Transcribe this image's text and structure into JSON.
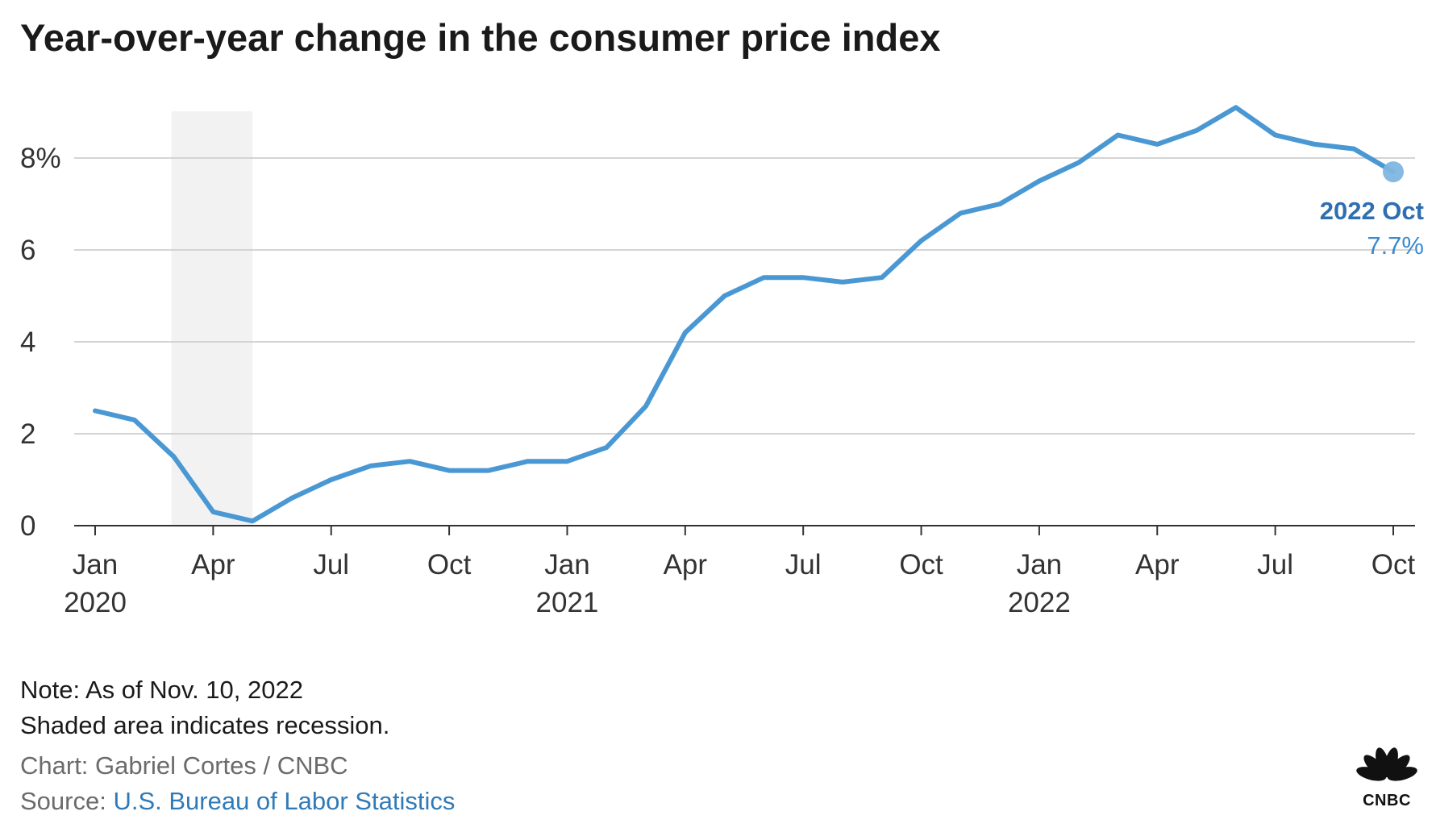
{
  "chart_data": {
    "type": "line",
    "title": "Year-over-year change in the consumer price index",
    "xlabel": "",
    "ylabel": "",
    "ylim": [
      0,
      9
    ],
    "yticks": [
      {
        "value": 0,
        "label": "0"
      },
      {
        "value": 2,
        "label": "2"
      },
      {
        "value": 4,
        "label": "4"
      },
      {
        "value": 6,
        "label": "6"
      },
      {
        "value": 8,
        "label": "8%"
      }
    ],
    "xticks": [
      {
        "index": 0,
        "label": "Jan",
        "sublabel": "2020"
      },
      {
        "index": 3,
        "label": "Apr",
        "sublabel": ""
      },
      {
        "index": 6,
        "label": "Jul",
        "sublabel": ""
      },
      {
        "index": 9,
        "label": "Oct",
        "sublabel": ""
      },
      {
        "index": 12,
        "label": "Jan",
        "sublabel": "2021"
      },
      {
        "index": 15,
        "label": "Apr",
        "sublabel": ""
      },
      {
        "index": 18,
        "label": "Jul",
        "sublabel": ""
      },
      {
        "index": 21,
        "label": "Oct",
        "sublabel": ""
      },
      {
        "index": 24,
        "label": "Jan",
        "sublabel": "2022"
      },
      {
        "index": 27,
        "label": "Apr",
        "sublabel": ""
      },
      {
        "index": 30,
        "label": "Jul",
        "sublabel": ""
      },
      {
        "index": 33,
        "label": "Oct",
        "sublabel": ""
      }
    ],
    "x": [
      "2020-01",
      "2020-02",
      "2020-03",
      "2020-04",
      "2020-05",
      "2020-06",
      "2020-07",
      "2020-08",
      "2020-09",
      "2020-10",
      "2020-11",
      "2020-12",
      "2021-01",
      "2021-02",
      "2021-03",
      "2021-04",
      "2021-05",
      "2021-06",
      "2021-07",
      "2021-08",
      "2021-09",
      "2021-10",
      "2021-11",
      "2021-12",
      "2022-01",
      "2022-02",
      "2022-03",
      "2022-04",
      "2022-05",
      "2022-06",
      "2022-07",
      "2022-08",
      "2022-09",
      "2022-10"
    ],
    "series": [
      {
        "color": "#4a98d3",
        "values": [
          2.5,
          2.3,
          1.5,
          0.3,
          0.1,
          0.6,
          1.0,
          1.3,
          1.4,
          1.2,
          1.2,
          1.4,
          1.4,
          1.7,
          2.6,
          4.2,
          5.0,
          5.4,
          5.4,
          5.3,
          5.4,
          6.2,
          6.8,
          7.0,
          7.5,
          7.9,
          8.5,
          8.3,
          8.6,
          9.1,
          8.5,
          8.3,
          8.2,
          7.7
        ]
      }
    ],
    "recession_shading": {
      "start": "2020-03",
      "end": "2020-05",
      "color": "#f2f2f2"
    },
    "grid": true,
    "annotation": {
      "date_label": "2022 Oct",
      "value_label": "7.7%",
      "index": 33
    }
  },
  "notes": {
    "note_line1": "Note: As of Nov. 10, 2022",
    "note_line2": "Shaded area indicates recession.",
    "credit": "Chart: Gabriel Cortes / CNBC",
    "source_prefix": "Source: ",
    "source_link": "U.S. Bureau of Labor Statistics"
  },
  "logo": {
    "text": "CNBC",
    "petal_colors": [
      "#111111",
      "#111111",
      "#111111",
      "#111111",
      "#111111",
      "#111111"
    ]
  }
}
